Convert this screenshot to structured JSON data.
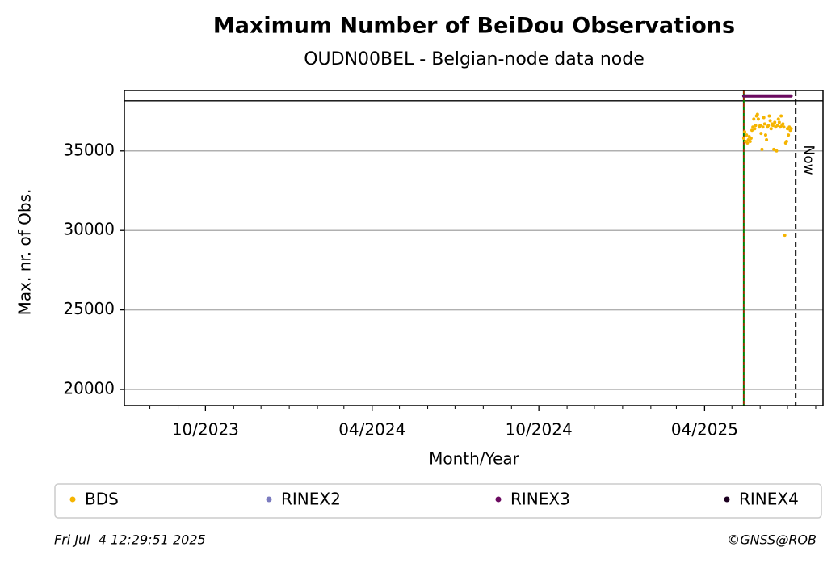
{
  "chart_data": {
    "type": "scatter",
    "title": "Maximum Number of BeiDou Observations",
    "subtitle": "OUDN00BEL - Belgian-node data node",
    "x_label": "Month/Year",
    "y_label": "Max. nr. of Obs.",
    "xlim": [
      "2023-07-04",
      "2025-08-09"
    ],
    "ylim": [
      18985,
      38800
    ],
    "xticks": [
      {
        "value": "2023-10-01",
        "label": "10/2023"
      },
      {
        "value": "2024-04-01",
        "label": "04/2024"
      },
      {
        "value": "2024-10-01",
        "label": "10/2024"
      },
      {
        "value": "2025-04-01",
        "label": "04/2025"
      }
    ],
    "xminorticks": [
      "2023-08-01",
      "2023-09-01",
      "2023-11-01",
      "2023-12-01",
      "2024-01-01",
      "2024-02-01",
      "2024-03-01",
      "2024-05-01",
      "2024-06-01",
      "2024-07-01",
      "2024-08-01",
      "2024-09-01",
      "2024-11-01",
      "2024-12-01",
      "2025-01-01",
      "2025-02-01",
      "2025-03-01",
      "2025-05-01",
      "2025-06-01",
      "2025-07-01",
      "2025-08-01"
    ],
    "yticks": [
      20000,
      25000,
      30000,
      35000
    ],
    "grid": true,
    "reference_line": 38150,
    "start_line": "2025-05-14",
    "now_line": {
      "x": "2025-07-10",
      "label": "Now"
    },
    "x": [
      "2025-05-14",
      "2025-05-15",
      "2025-05-16",
      "2025-05-17",
      "2025-05-18",
      "2025-05-19",
      "2025-05-20",
      "2025-05-21",
      "2025-05-22",
      "2025-05-23",
      "2025-05-24",
      "2025-05-25",
      "2025-05-26",
      "2025-05-27",
      "2025-05-28",
      "2025-05-29",
      "2025-05-30",
      "2025-05-31",
      "2025-06-01",
      "2025-06-02",
      "2025-06-03",
      "2025-06-04",
      "2025-06-05",
      "2025-06-06",
      "2025-06-07",
      "2025-06-08",
      "2025-06-09",
      "2025-06-10",
      "2025-06-11",
      "2025-06-12",
      "2025-06-13",
      "2025-06-14",
      "2025-06-15",
      "2025-06-16",
      "2025-06-17",
      "2025-06-18",
      "2025-06-19",
      "2025-06-20",
      "2025-06-21",
      "2025-06-22",
      "2025-06-23",
      "2025-06-24",
      "2025-06-25",
      "2025-06-26",
      "2025-06-27",
      "2025-06-28",
      "2025-06-29",
      "2025-06-30",
      "2025-07-01",
      "2025-07-02",
      "2025-07-03",
      "2025-07-04",
      "2025-07-05"
    ],
    "series": [
      {
        "name": "BDS",
        "color": "#f5b400",
        "values": [
          35800,
          36200,
          35600,
          36000,
          35500,
          35700,
          35900,
          35600,
          35800,
          36300,
          36500,
          37000,
          36400,
          36600,
          37200,
          37300,
          37000,
          36500,
          36600,
          36100,
          35100,
          36500,
          37100,
          36700,
          36000,
          35700,
          36500,
          36600,
          37200,
          36900,
          36400,
          36700,
          36600,
          35100,
          36800,
          36500,
          35000,
          36600,
          37000,
          36800,
          36500,
          37200,
          36600,
          36700,
          36500,
          29700,
          35500,
          35600,
          36400,
          36000,
          36500,
          36300,
          36400
        ]
      },
      {
        "name": "RINEX2",
        "color": "#7b7bbf",
        "values": []
      },
      {
        "name": "RINEX3",
        "color": "#6b0a60",
        "values": [
          38460,
          38460,
          38460,
          38460,
          38460,
          38460,
          38460,
          38460,
          38460,
          38460,
          38460,
          38460,
          38460,
          38460,
          38460,
          38460,
          38460,
          38460,
          38460,
          38460,
          38460,
          38460,
          38460,
          38460,
          38460,
          38460,
          38460,
          38460,
          38460,
          38460,
          38460,
          38460,
          38460,
          38460,
          38460,
          38460,
          38460,
          38460,
          38460,
          38460,
          38460,
          38460,
          38460,
          38460,
          38460,
          38460,
          38460,
          38460,
          38460,
          38460,
          38460,
          38460,
          38460
        ]
      },
      {
        "name": "RINEX4",
        "color": "#1c0020",
        "values": []
      }
    ],
    "timestamp": "Fri Jul  4 12:29:51 2025",
    "credit": "©GNSS@ROB"
  }
}
